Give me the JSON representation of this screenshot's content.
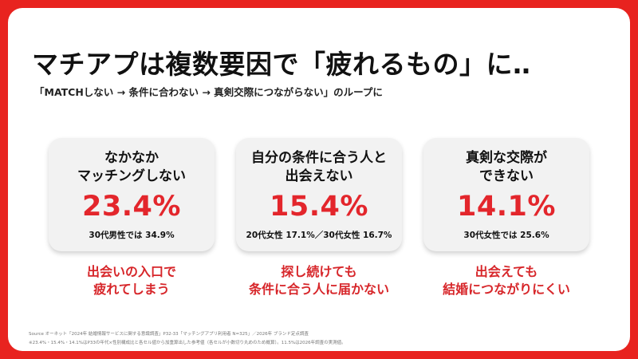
{
  "slide": {
    "title": "マチアプは複数要因で「疲れるもの」に‥",
    "subtitle": "「MATCHしない → 条件に合わない → 真剣交際につながらない」のループに",
    "cards": [
      {
        "title_lines": [
          "なかなか",
          "マッチングしない"
        ],
        "value": "23.4%",
        "note": "30代男性では 34.9%",
        "caption_lines": [
          "出会いの入口で",
          "疲れてしまう"
        ]
      },
      {
        "title_lines": [
          "自分の条件に合う人と",
          "出会えない"
        ],
        "value": "15.4%",
        "note": "20代女性 17.1%／30代女性 16.7%",
        "caption_lines": [
          "探し続けても",
          "条件に合う人に届かない"
        ]
      },
      {
        "title_lines": [
          "真剣な交際が",
          "できない"
        ],
        "value": "14.1%",
        "note": "30代女性では 25.6%",
        "caption_lines": [
          "出会えても",
          "結婚につながりにくい"
        ]
      }
    ],
    "footer": {
      "source": "Source オーネット「2024年 結婚情報サービスに関する意識調査」P32-33「マッチングアプリ利用者 N=325」／2026年 ブランド定点調査",
      "note": "※23.4%・15.4%・14.1%はP33の年代×性別構成比と各セル値から加重算出した参考値（各セルが小数切り丸めのため概算）。11.5%は2026年調査の実測値。"
    }
  },
  "colors": {
    "frame": "#e8231f",
    "accent": "#e3262c",
    "card_bg": "#f2f2f2"
  }
}
